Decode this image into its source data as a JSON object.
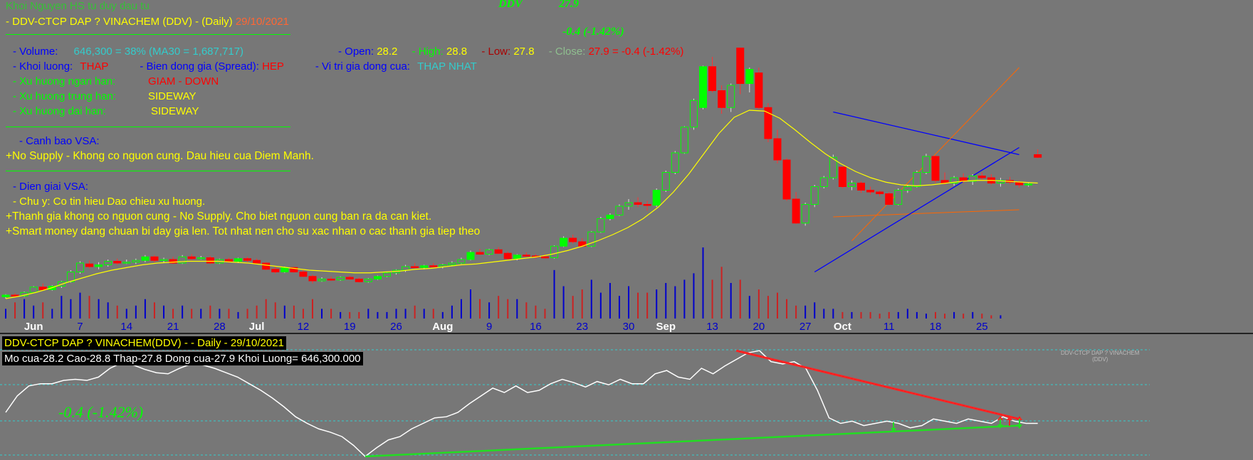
{
  "header": {
    "author": "Khoi Nguyen HS tu duy dau tu",
    "ticker_line": "- DDV-CTCP DAP ? VINACHEM (DDV) - (Daily)",
    "date": "29/10/2021",
    "symbol": "DDV",
    "last_price": "27.9",
    "change": "-0.4 (-1.42%)"
  },
  "stats": {
    "volume_label": "- Volume:",
    "volume_value": "646,300  =  38%  (MA30 = 1,687,717)",
    "open_label": "- Open:",
    "open_value": "28.2",
    "high_label": "- High:",
    "high_value": "28.8",
    "low_label": "- Low:",
    "low_value": "27.8",
    "close_label": "- Close:",
    "close_value": "27.9  =  -0.4  (-1.42%)",
    "khoi_luong_label": "- Khoi luong:",
    "khoi_luong_value": "THAP",
    "spread_label": "- Bien dong gia (Spread):",
    "spread_value": "HEP",
    "vitri_label": "-   Vi tri gia dong cua:",
    "vitri_value": "THAP NHAT",
    "xh_ngan_label": "- Xu huong ngan han:",
    "xh_ngan_value": "GIAM - DOWN",
    "xh_trung_label": "- Xu huong trung han:",
    "xh_trung_value": "SIDEWAY",
    "xh_dai_label": "- Xu huong dai han:",
    "xh_dai_value": "SIDEWAY"
  },
  "vsa": {
    "warning_title": "- Canh bao VSA:",
    "warning_text": "+No Supply - Khong co nguon cung. Dau hieu cua Diem Manh.",
    "explain_title": "- Dien giai VSA:",
    "explain_1": "- Chu y: Co tin hieu Dao chieu xu huong.",
    "explain_2": "+Thanh gia khong co nguon cung - No Supply. Cho biet nguon cung ban ra da can kiet.",
    "explain_3": "+Smart money dang chuan bi day gia len. Tot nhat nen cho su xac nhan o cac thanh gia tiep theo"
  },
  "lower": {
    "title": "DDV-CTCP DAP ? VINACHEM(DDV) -  - Daily  - 29/10/2021",
    "ohlc": "Mo cua-28.2  Cao-28.8  Thap-27.8  Dong cua-27.9  Khoi Luong= 646,300.000",
    "change": "-0.4 (-1.42%)",
    "watermark_1": "DDV-CTCP DAP ? VINACHEM",
    "watermark_2": "(DDV)"
  },
  "colors": {
    "background": "#777777",
    "up": "#00ff00",
    "down": "#ff0000",
    "ma": "#ffff00",
    "vol_up": "#0000cc",
    "vol_down": "#cc2222"
  },
  "chart_data": {
    "type": "candlestick",
    "x_labels": [
      "Jun",
      "7",
      "14",
      "21",
      "28",
      "Jul",
      "12",
      "19",
      "26",
      "Aug",
      "9",
      "16",
      "23",
      "30",
      "Sep",
      "13",
      "20",
      "27",
      "Oct",
      "11",
      "18",
      "25"
    ],
    "x_label_index": [
      3,
      8,
      13,
      18,
      23,
      27,
      32,
      37,
      42,
      47,
      52,
      57,
      62,
      67,
      71,
      76,
      81,
      86,
      90,
      95,
      100,
      105
    ],
    "x_label_bold": [
      "Jun",
      "Jul",
      "Aug",
      "Sep",
      "Oct"
    ],
    "candles": [
      [
        12.2,
        12.5,
        12.0,
        12.4
      ],
      [
        12.4,
        12.6,
        12.1,
        12.3
      ],
      [
        12.3,
        12.8,
        12.2,
        12.7
      ],
      [
        12.7,
        13.4,
        12.6,
        13.3
      ],
      [
        13.3,
        13.7,
        12.9,
        13.0
      ],
      [
        13.0,
        13.5,
        12.9,
        13.4
      ],
      [
        13.4,
        14.0,
        13.2,
        13.9
      ],
      [
        13.9,
        15.2,
        13.8,
        15.0
      ],
      [
        15.0,
        16.2,
        14.8,
        16.0
      ],
      [
        15.9,
        16.3,
        15.4,
        15.6
      ],
      [
        15.6,
        16.1,
        15.3,
        15.8
      ],
      [
        15.8,
        16.4,
        15.6,
        16.2
      ],
      [
        16.2,
        16.5,
        15.8,
        16.0
      ],
      [
        16.0,
        16.4,
        15.9,
        16.1
      ],
      [
        16.1,
        16.5,
        15.9,
        16.3
      ],
      [
        16.3,
        16.9,
        16.1,
        16.7
      ],
      [
        16.7,
        16.9,
        16.1,
        16.3
      ],
      [
        16.3,
        16.6,
        16.0,
        16.4
      ],
      [
        16.4,
        16.7,
        15.9,
        16.0
      ],
      [
        16.0,
        16.9,
        15.9,
        16.7
      ],
      [
        16.7,
        17.0,
        16.3,
        16.5
      ],
      [
        16.5,
        16.8,
        16.4,
        16.6
      ],
      [
        16.6,
        16.8,
        15.9,
        16.0
      ],
      [
        16.0,
        16.5,
        15.9,
        16.4
      ],
      [
        16.4,
        16.6,
        16.0,
        16.2
      ],
      [
        16.2,
        16.6,
        16.0,
        16.5
      ],
      [
        16.5,
        16.7,
        16.1,
        16.3
      ],
      [
        16.3,
        16.5,
        15.9,
        16.0
      ],
      [
        16.0,
        16.1,
        15.2,
        15.3
      ],
      [
        15.3,
        15.6,
        14.8,
        15.0
      ],
      [
        15.0,
        15.6,
        14.9,
        15.5
      ],
      [
        15.5,
        15.6,
        14.9,
        15.0
      ],
      [
        15.0,
        15.3,
        14.4,
        14.5
      ],
      [
        14.5,
        14.7,
        13.7,
        14.0
      ],
      [
        14.0,
        14.4,
        13.9,
        14.2
      ],
      [
        14.2,
        14.5,
        14.0,
        14.1
      ],
      [
        14.1,
        14.5,
        14.0,
        14.4
      ],
      [
        14.4,
        14.6,
        14.1,
        14.2
      ],
      [
        14.2,
        14.4,
        13.8,
        13.9
      ],
      [
        13.9,
        14.3,
        13.8,
        14.2
      ],
      [
        14.2,
        14.6,
        14.1,
        14.5
      ],
      [
        14.5,
        15.0,
        14.4,
        14.9
      ],
      [
        14.9,
        15.3,
        14.7,
        15.2
      ],
      [
        15.2,
        15.8,
        15.0,
        15.6
      ],
      [
        15.6,
        16.0,
        15.4,
        15.5
      ],
      [
        15.5,
        15.8,
        15.3,
        15.7
      ],
      [
        15.7,
        16.0,
        15.5,
        15.6
      ],
      [
        15.6,
        15.9,
        15.4,
        15.8
      ],
      [
        15.8,
        16.2,
        15.7,
        16.0
      ],
      [
        16.0,
        16.6,
        15.9,
        16.4
      ],
      [
        16.4,
        17.4,
        16.3,
        17.2
      ],
      [
        17.2,
        17.6,
        16.9,
        17.0
      ],
      [
        17.0,
        17.6,
        16.9,
        17.5
      ],
      [
        17.5,
        17.8,
        17.0,
        17.1
      ],
      [
        17.1,
        17.3,
        16.3,
        16.5
      ],
      [
        16.5,
        17.0,
        16.3,
        16.9
      ],
      [
        16.9,
        17.2,
        16.7,
        16.8
      ],
      [
        16.8,
        17.0,
        16.5,
        16.7
      ],
      [
        16.7,
        17.0,
        16.5,
        16.6
      ],
      [
        16.6,
        18.0,
        16.5,
        17.9
      ],
      [
        17.9,
        19.0,
        17.8,
        18.8
      ],
      [
        18.8,
        19.2,
        18.2,
        18.4
      ],
      [
        18.4,
        18.8,
        17.8,
        17.9
      ],
      [
        17.9,
        19.6,
        17.8,
        19.5
      ],
      [
        19.5,
        21.2,
        19.4,
        21.0
      ],
      [
        21.0,
        21.6,
        20.8,
        21.4
      ],
      [
        21.4,
        22.6,
        21.3,
        22.4
      ],
      [
        22.4,
        23.2,
        22.0,
        22.8
      ],
      [
        22.8,
        23.4,
        22.3,
        22.6
      ],
      [
        22.6,
        23.0,
        21.9,
        22.5
      ],
      [
        22.5,
        24.4,
        22.3,
        24.2
      ],
      [
        24.2,
        26.4,
        24.0,
        26.2
      ],
      [
        26.2,
        28.6,
        26.0,
        28.4
      ],
      [
        28.4,
        31.4,
        28.3,
        31.3
      ],
      [
        31.3,
        34.5,
        31.0,
        34.3
      ],
      [
        33.5,
        38.2,
        33.3,
        38.1
      ],
      [
        38.1,
        39.2,
        35.2,
        35.4
      ],
      [
        35.4,
        36.0,
        32.8,
        33.5
      ],
      [
        33.5,
        36.2,
        33.0,
        36.0
      ],
      [
        40.2,
        40.2,
        35.0,
        36.2
      ],
      [
        36.2,
        38.0,
        35.2,
        37.8
      ],
      [
        37.4,
        38.0,
        33.3,
        33.5
      ],
      [
        33.5,
        34.0,
        29.6,
        30.0
      ],
      [
        30.0,
        31.0,
        27.2,
        27.6
      ],
      [
        27.6,
        27.8,
        23.0,
        23.2
      ],
      [
        23.2,
        24.0,
        20.4,
        20.5
      ],
      [
        20.5,
        22.8,
        20.2,
        22.6
      ],
      [
        22.6,
        24.8,
        22.3,
        24.6
      ],
      [
        24.6,
        25.8,
        24.4,
        25.6
      ],
      [
        25.6,
        28.2,
        25.4,
        27.9
      ],
      [
        26.8,
        26.9,
        24.4,
        24.6
      ],
      [
        24.6,
        25.3,
        24.2,
        25.0
      ],
      [
        25.0,
        25.2,
        23.9,
        24.2
      ],
      [
        24.2,
        24.6,
        23.7,
        24.0
      ],
      [
        24.0,
        24.2,
        23.5,
        23.8
      ],
      [
        23.8,
        24.0,
        22.5,
        22.6
      ],
      [
        22.6,
        24.4,
        22.5,
        24.2
      ],
      [
        24.2,
        24.8,
        23.9,
        24.6
      ],
      [
        24.6,
        26.4,
        24.5,
        26.2
      ],
      [
        26.2,
        28.3,
        26.0,
        28.0
      ],
      [
        28.0,
        28.1,
        25.0,
        25.3
      ],
      [
        25.3,
        26.2,
        24.8,
        25.0
      ],
      [
        25.0,
        25.8,
        24.7,
        25.6
      ],
      [
        25.6,
        26.1,
        25.0,
        25.2
      ],
      [
        25.2,
        26.0,
        24.8,
        25.8
      ],
      [
        25.8,
        26.2,
        25.3,
        25.6
      ],
      [
        25.6,
        26.0,
        24.8,
        25.0
      ],
      [
        25.0,
        25.6,
        24.6,
        25.3
      ],
      [
        25.3,
        25.7,
        24.9,
        25.1
      ],
      [
        25.1,
        25.3,
        24.5,
        24.8
      ],
      [
        24.8,
        25.0,
        24.6,
        24.9
      ],
      [
        28.2,
        28.8,
        27.8,
        27.9
      ]
    ],
    "volumes": [
      3,
      5,
      6,
      4,
      5,
      3,
      7,
      6,
      8,
      7,
      6,
      5,
      4,
      3,
      4,
      6,
      5,
      4,
      3,
      4,
      3,
      3,
      4,
      3,
      3,
      2,
      3,
      4,
      6,
      5,
      4,
      4,
      3,
      6,
      3,
      3,
      2,
      2,
      2,
      3,
      2,
      2,
      3,
      3,
      4,
      3,
      3,
      2,
      4,
      6,
      9,
      6,
      5,
      7,
      6,
      6,
      5,
      4,
      3,
      15,
      10,
      7,
      9,
      12,
      8,
      11,
      7,
      10,
      8,
      8,
      9,
      11,
      10,
      12,
      14,
      22,
      12,
      16,
      11,
      12,
      7,
      9,
      7,
      8,
      6,
      4,
      4,
      5,
      3,
      3,
      2,
      2,
      2,
      2,
      1.5,
      2,
      2,
      3,
      2,
      1.5,
      2,
      1.5,
      2,
      1.5,
      2,
      1.5,
      1,
      1
    ],
    "ma30": [
      12.0,
      12.3,
      12.7,
      13.2,
      13.8,
      14.3,
      14.8,
      15.2,
      15.5,
      15.8,
      16.0,
      16.1,
      16.2,
      16.2,
      16.2,
      16.1,
      16.0,
      15.8,
      15.6,
      15.4,
      15.2,
      15.1,
      15.0,
      14.9,
      14.9,
      15.0,
      15.1,
      15.3,
      15.4,
      15.6,
      15.8,
      15.9,
      16.1,
      16.3,
      16.5,
      16.7,
      17.0,
      17.4,
      17.9,
      18.5,
      19.2,
      20.0,
      21.0,
      22.3,
      24.0,
      26.0,
      28.3,
      30.6,
      32.4,
      33.2,
      33.1,
      32.3,
      31.0,
      29.6,
      28.3,
      27.2,
      26.3,
      25.6,
      25.1,
      24.8,
      24.7,
      24.8,
      25.0,
      25.2,
      25.3,
      25.3,
      25.2,
      25.1,
      25.0
    ],
    "ma30_index": [
      0,
      2,
      4,
      6,
      8,
      10,
      12,
      14,
      16,
      18,
      20,
      22,
      24,
      26,
      28,
      30,
      32,
      34,
      36,
      38,
      40,
      42,
      44,
      46,
      48,
      50,
      52,
      54,
      56,
      58,
      60,
      62,
      64,
      66,
      68,
      70,
      72,
      74,
      76,
      78,
      80,
      82,
      84,
      86,
      88,
      90,
      92,
      94,
      96,
      98,
      100,
      102,
      104,
      106,
      108,
      110,
      112,
      114,
      116,
      118,
      120,
      122,
      124,
      126,
      128,
      130,
      132,
      134,
      136
    ],
    "oscillator": [
      40,
      55,
      64,
      66,
      66,
      69,
      70,
      69,
      72,
      80,
      85,
      83,
      79,
      76,
      75,
      80,
      84,
      83,
      80,
      76,
      72,
      66,
      60,
      53,
      45,
      36,
      30,
      25,
      22,
      18,
      10,
      0,
      8,
      15,
      18,
      25,
      30,
      35,
      36,
      40,
      48,
      55,
      62,
      58,
      64,
      58,
      60,
      66,
      70,
      67,
      63,
      68,
      65,
      70,
      66,
      66,
      75,
      78,
      72,
      70,
      80,
      75,
      82,
      88,
      94,
      96,
      86,
      84,
      86,
      80,
      60,
      35,
      30,
      32,
      28,
      30,
      32,
      30,
      26,
      28,
      34,
      32,
      30,
      34,
      32,
      30,
      36,
      32,
      30,
      30
    ],
    "osc_ylim": [
      0,
      100
    ],
    "price_ylim": [
      10,
      42
    ]
  }
}
